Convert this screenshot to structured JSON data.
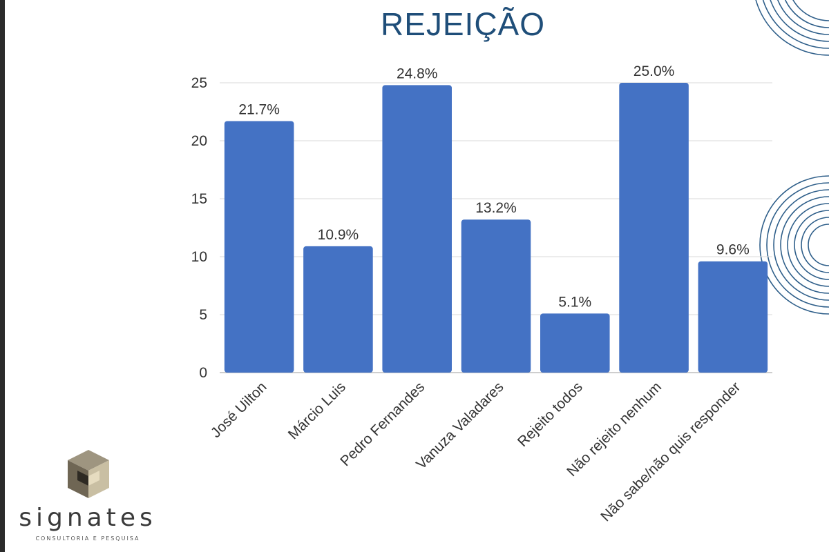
{
  "slide": {
    "title": "REJEIÇÃO"
  },
  "logo": {
    "wordmark": "signates",
    "tagline": "CONSULTORIA E PESQUISA"
  },
  "chart_data": {
    "type": "bar",
    "title": "REJEIÇÃO",
    "categories": [
      "José Uilton",
      "Márcio Luis",
      "Pedro Fernandes",
      "Vanuza Valadares",
      "Rejeito todos",
      "Não rejeito nenhum",
      "Não sabe/não quis responder"
    ],
    "values": [
      21.7,
      10.9,
      24.8,
      13.2,
      5.1,
      25.0,
      9.6
    ],
    "data_labels": [
      "21.7%",
      "10.9%",
      "24.8%",
      "13.2%",
      "5.1%",
      "25.0%",
      "9.6%"
    ],
    "ylim": [
      0,
      25
    ],
    "yticks": [
      0,
      5,
      10,
      15,
      20,
      25
    ],
    "grid": true,
    "legend": "none",
    "colors": {
      "bar": "#4472c4",
      "grid": "#d9d9d9",
      "title": "#1f4e79"
    }
  }
}
